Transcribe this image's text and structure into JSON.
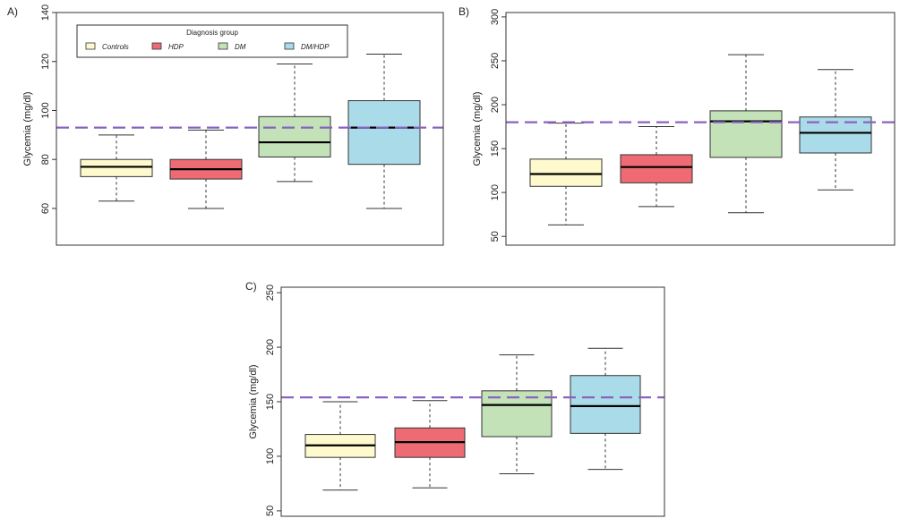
{
  "chart_data": [
    {
      "type": "boxplot",
      "panel": "A)",
      "ylabel": "Glycemia (mg/dl)",
      "ylim": [
        45,
        140
      ],
      "yticks": [
        60,
        80,
        100,
        120,
        140
      ],
      "reference_line": 93,
      "categories": [
        "Controls",
        "HDP",
        "DM",
        "DM/HDP"
      ],
      "boxes": [
        {
          "group": "Controls",
          "min": 63,
          "q1": 73,
          "median": 77,
          "q3": 80,
          "max": 90
        },
        {
          "group": "HDP",
          "min": 60,
          "q1": 72,
          "median": 76,
          "q3": 80,
          "max": 92
        },
        {
          "group": "DM",
          "min": 71,
          "q1": 81,
          "median": 87,
          "q3": 97.5,
          "max": 119
        },
        {
          "group": "DM/HDP",
          "min": 60,
          "q1": 78,
          "median": 93,
          "q3": 104,
          "max": 123
        }
      ],
      "legend": {
        "title": "Diagnosis group",
        "position": "top",
        "entries": [
          "Controls",
          "HDP",
          "DM",
          "DM/HDP"
        ]
      }
    },
    {
      "type": "boxplot",
      "panel": "B)",
      "ylabel": "Glycemia (mg/dl)",
      "ylim": [
        40,
        305
      ],
      "yticks": [
        50,
        100,
        150,
        200,
        250,
        300
      ],
      "reference_line": 180,
      "categories": [
        "Controls",
        "HDP",
        "DM",
        "DM/HDP"
      ],
      "boxes": [
        {
          "group": "Controls",
          "min": 63,
          "q1": 107,
          "median": 121,
          "q3": 138,
          "max": 179
        },
        {
          "group": "HDP",
          "min": 84,
          "q1": 111,
          "median": 129,
          "q3": 143,
          "max": 175
        },
        {
          "group": "DM",
          "min": 77,
          "q1": 140,
          "median": 181,
          "q3": 193,
          "max": 257
        },
        {
          "group": "DM/HDP",
          "min": 103,
          "q1": 145,
          "median": 168,
          "q3": 186,
          "max": 240
        }
      ]
    },
    {
      "type": "boxplot",
      "panel": "C)",
      "ylabel": "Glycemia (mg/dl)",
      "ylim": [
        45,
        255
      ],
      "yticks": [
        50,
        100,
        150,
        200,
        250
      ],
      "reference_line": 154,
      "categories": [
        "Controls",
        "HDP",
        "DM",
        "DM/HDP"
      ],
      "boxes": [
        {
          "group": "Controls",
          "min": 69,
          "q1": 99,
          "median": 110,
          "q3": 120,
          "max": 150
        },
        {
          "group": "HDP",
          "min": 71,
          "q1": 99,
          "median": 113,
          "q3": 126,
          "max": 151
        },
        {
          "group": "DM",
          "min": 84,
          "q1": 118,
          "median": 147,
          "q3": 160,
          "max": 193
        },
        {
          "group": "DM/HDP",
          "min": 88,
          "q1": 121,
          "median": 146,
          "q3": 174,
          "max": 199
        }
      ]
    }
  ],
  "colors": {
    "Controls": "#fffacd",
    "HDP": "#ee6b74",
    "DM": "#c3e2b8",
    "DM/HDP": "#aadbe8",
    "reference_line": "#8a63c2",
    "frame": "#333333"
  }
}
